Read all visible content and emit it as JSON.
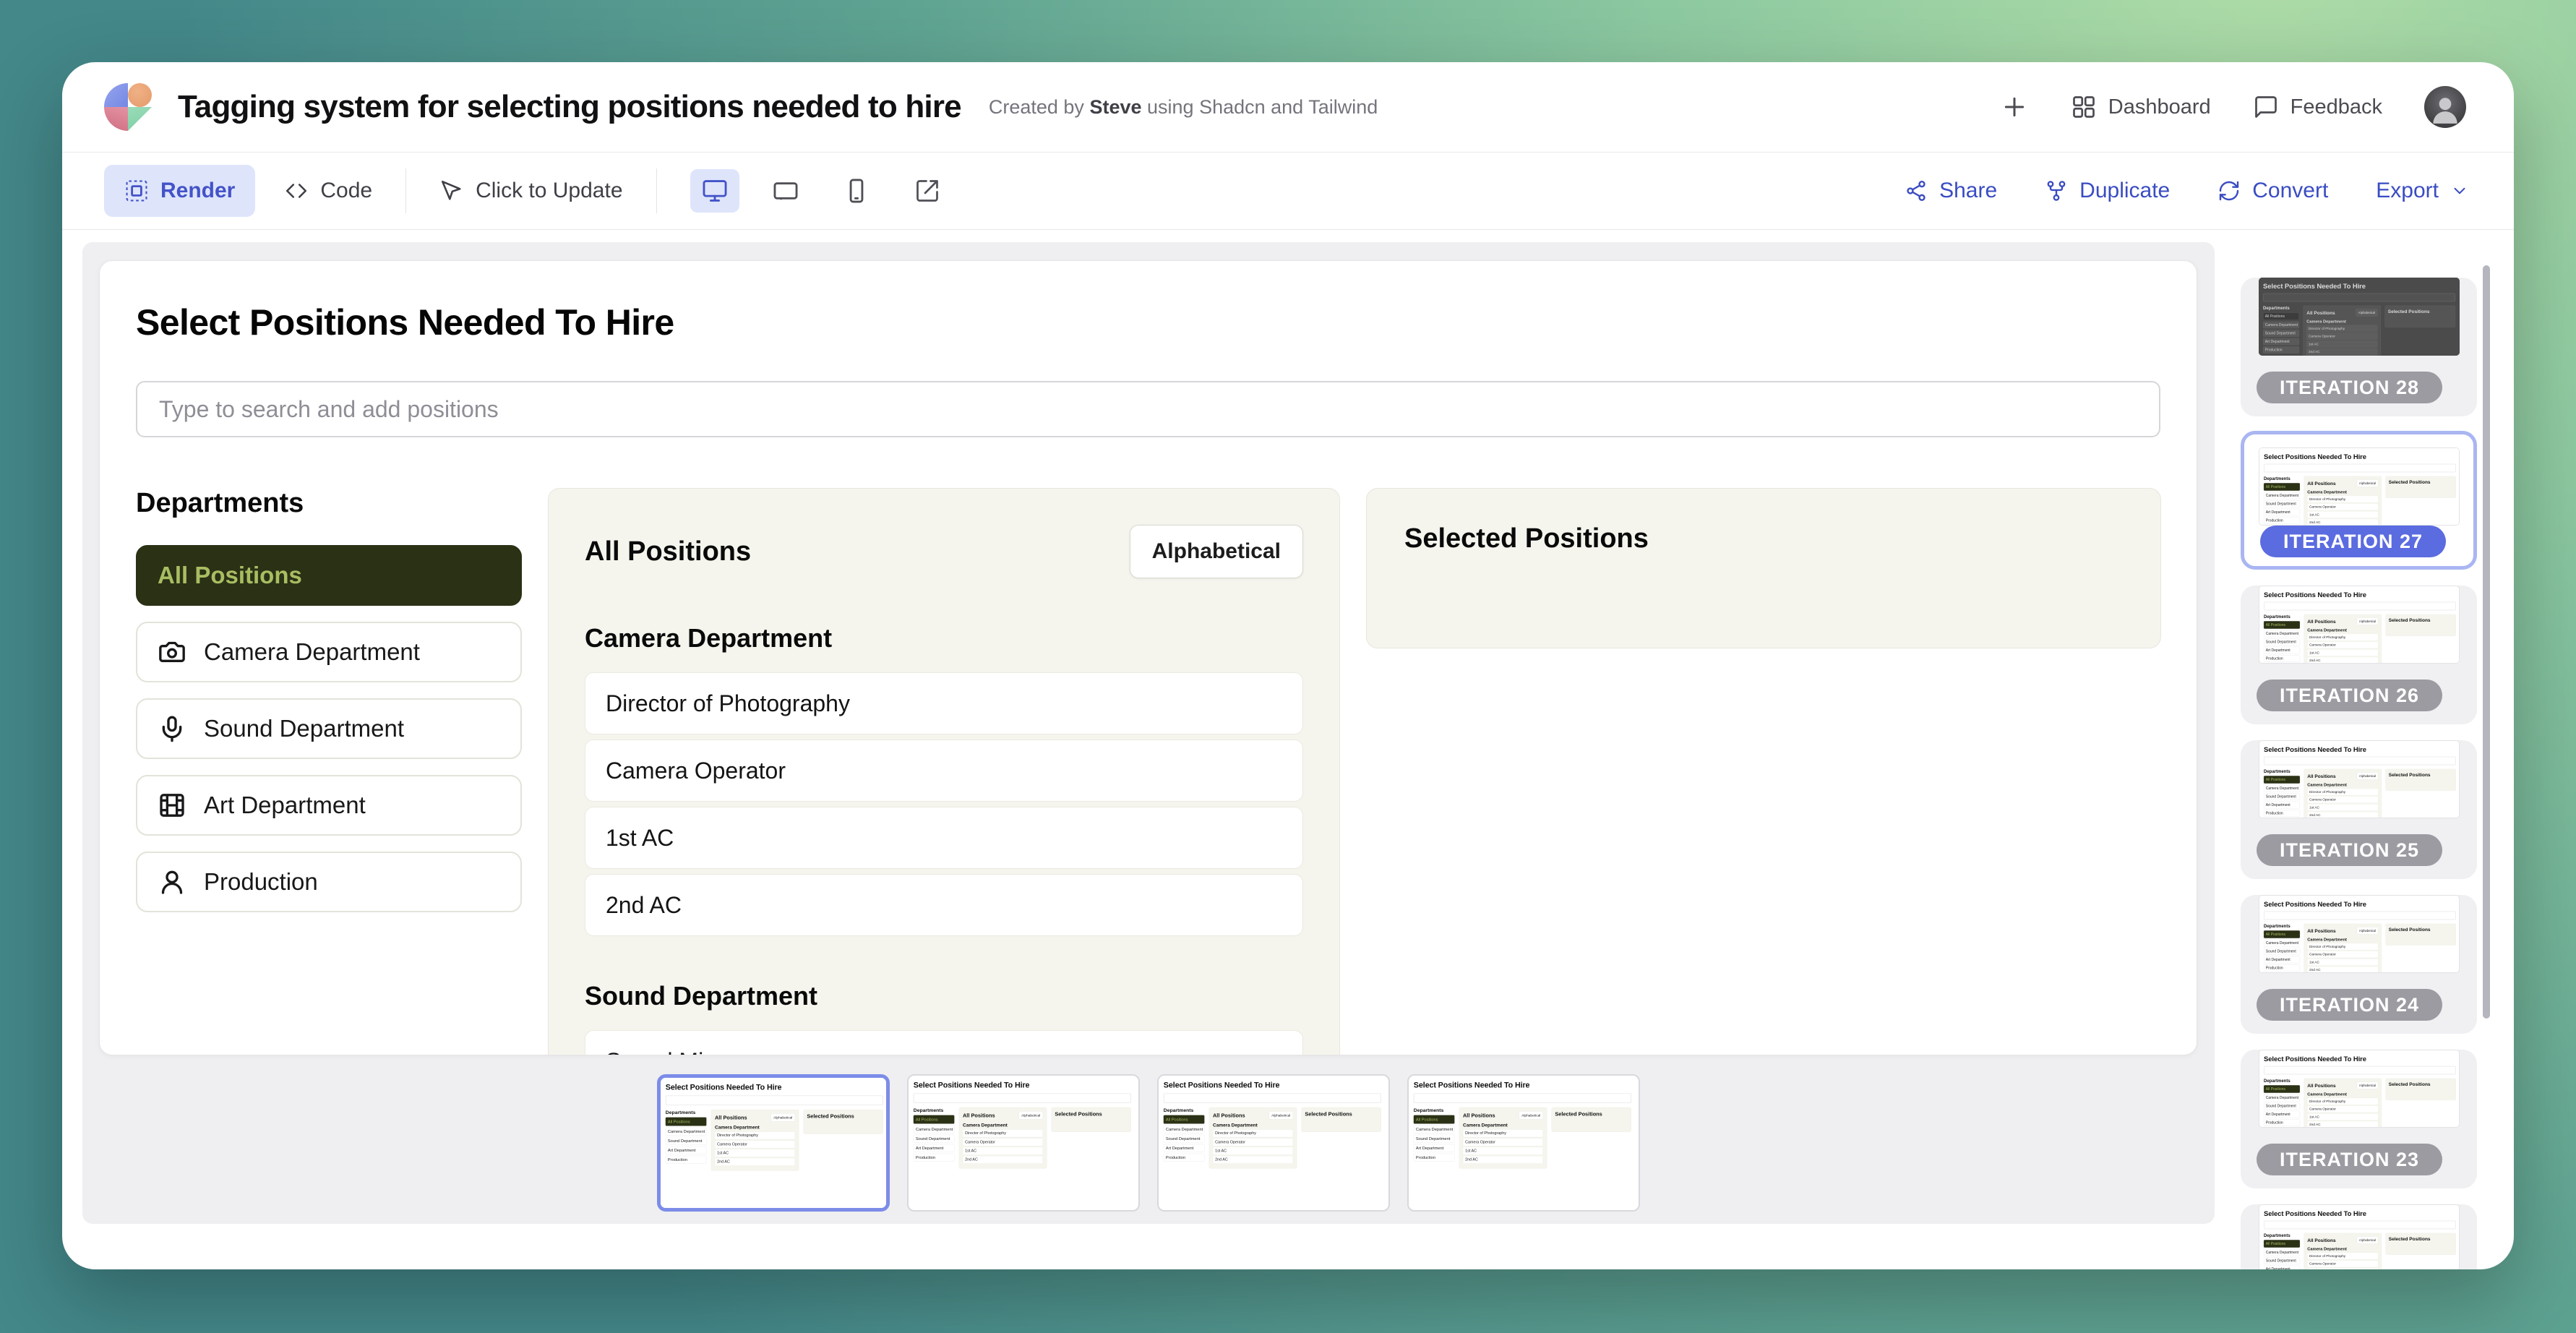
{
  "header": {
    "title": "Tagging system for selecting positions needed to hire",
    "byline_prefix": "Created by",
    "byline_author": "Steve",
    "byline_suffix": "using Shadcn and Tailwind",
    "dashboard_label": "Dashboard",
    "feedback_label": "Feedback"
  },
  "toolbar": {
    "render_label": "Render",
    "code_label": "Code",
    "click_to_update_label": "Click to Update",
    "share_label": "Share",
    "duplicate_label": "Duplicate",
    "convert_label": "Convert",
    "export_label": "Export"
  },
  "app": {
    "heading": "Select Positions Needed To Hire",
    "search_placeholder": "Type to search and add positions",
    "departments_heading": "Departments",
    "departments": [
      {
        "label": "All Positions",
        "icon": "",
        "active": true
      },
      {
        "label": "Camera Department",
        "icon": "camera-icon",
        "active": false
      },
      {
        "label": "Sound Department",
        "icon": "mic-icon",
        "active": false
      },
      {
        "label": "Art Department",
        "icon": "film-icon",
        "active": false
      },
      {
        "label": "Production",
        "icon": "user-icon",
        "active": false
      }
    ],
    "positions_panel": {
      "heading": "All Positions",
      "sort_label": "Alphabetical",
      "groups": [
        {
          "heading": "Camera Department",
          "items": [
            "Director of Photography",
            "Camera Operator",
            "1st AC",
            "2nd AC"
          ]
        },
        {
          "heading": "Sound Department",
          "items": [
            "Sound Mixer"
          ]
        }
      ]
    },
    "selected_panel": {
      "heading": "Selected Positions"
    }
  },
  "carousel": {
    "items": [
      {
        "selected": true
      },
      {
        "selected": false
      },
      {
        "selected": false
      },
      {
        "selected": false
      }
    ]
  },
  "sidebar": {
    "iterations": [
      {
        "label": "ITERATION 28",
        "theme": "dark",
        "selected": false,
        "partial": false
      },
      {
        "label": "ITERATION 27",
        "theme": "light",
        "selected": true,
        "partial": false
      },
      {
        "label": "ITERATION 26",
        "theme": "light",
        "selected": false,
        "partial": false
      },
      {
        "label": "ITERATION 25",
        "theme": "light",
        "selected": false,
        "partial": false
      },
      {
        "label": "ITERATION 24",
        "theme": "light",
        "selected": false,
        "partial": false
      },
      {
        "label": "ITERATION 23",
        "theme": "light",
        "selected": false,
        "partial": false
      },
      {
        "label": "",
        "theme": "light",
        "selected": false,
        "partial": true
      }
    ]
  },
  "colors": {
    "accent_indigo": "#4453c8",
    "link_blue": "#3a4cc2",
    "active_department_bg": "#2a3115",
    "active_department_text": "#a9bd62",
    "selected_iteration_pill": "#5b6be0",
    "selected_border": "#7c8ce8",
    "panel_beige": "#f5f5ee",
    "background_teal": "#44888a",
    "background_green": "#aedca7"
  }
}
